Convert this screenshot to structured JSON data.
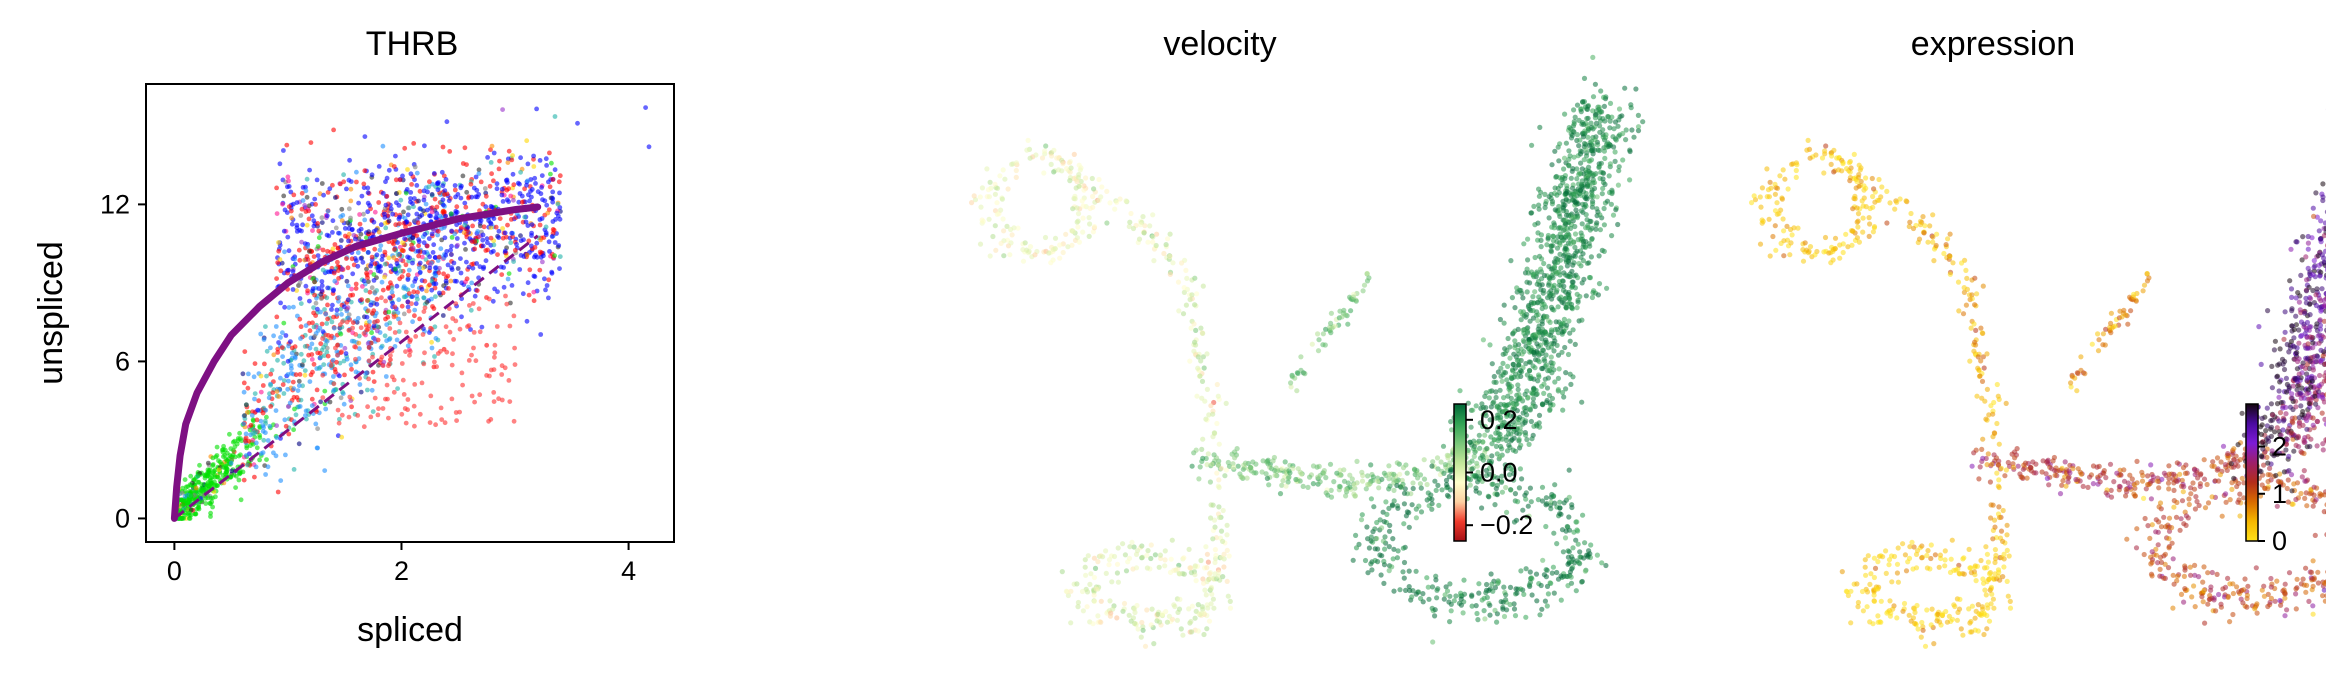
{
  "colors": {
    "fit_curve": "#7e1083",
    "steady_state": "#7e1083",
    "velocity_cmap": [
      "#a50f15",
      "#ef3b2c",
      "#fdd0a2",
      "#ffffcc",
      "#c2e699",
      "#78c679",
      "#31a354",
      "#006837"
    ],
    "expression_cmap": [
      "#ffe11a",
      "#f5b700",
      "#d86b00",
      "#b32d1a",
      "#9e1f6a",
      "#7d1bd6",
      "#4b0aa0",
      "#14060f"
    ],
    "cluster_palette": [
      "#ff0000",
      "#0000ff",
      "#00e000",
      "#ff8c00",
      "#1e90ff",
      "#ff1493",
      "#20b2aa",
      "#9932cc",
      "#ffd700",
      "#808080",
      "#000080",
      "#2f2f2f"
    ]
  },
  "chart_data": [
    {
      "type": "scatter",
      "title": "THRB",
      "xlabel": "spliced",
      "ylabel": "unspliced",
      "xlim": [
        -0.25,
        4.4
      ],
      "ylim": [
        -0.9,
        16.6
      ],
      "xticks": [
        0,
        2,
        4
      ],
      "yticks": [
        0,
        6,
        12
      ],
      "point_groups": [
        {
          "region": "upper cloud",
          "x_range": [
            0.9,
            3.4
          ],
          "y_range": [
            7.5,
            14.5
          ]
        },
        {
          "region": "middle cloud",
          "x_range": [
            0.6,
            2.4
          ],
          "y_range": [
            3.5,
            11.0
          ]
        },
        {
          "region": "lower tail",
          "x_range": [
            0.0,
            1.0
          ],
          "y_range": [
            0.0,
            4.5
          ]
        }
      ],
      "outliers": [
        {
          "x": 4.15,
          "y": 15.7
        },
        {
          "x": 4.18,
          "y": 14.2
        },
        {
          "x": 3.55,
          "y": 15.1
        }
      ],
      "fit_curve": [
        {
          "x": 0.0,
          "y": 0.0
        },
        {
          "x": 0.02,
          "y": 1.2
        },
        {
          "x": 0.05,
          "y": 2.4
        },
        {
          "x": 0.1,
          "y": 3.6
        },
        {
          "x": 0.2,
          "y": 4.8
        },
        {
          "x": 0.35,
          "y": 6.0
        },
        {
          "x": 0.5,
          "y": 7.0
        },
        {
          "x": 0.75,
          "y": 8.1
        },
        {
          "x": 1.0,
          "y": 9.0
        },
        {
          "x": 1.3,
          "y": 9.8
        },
        {
          "x": 1.6,
          "y": 10.4
        },
        {
          "x": 2.0,
          "y": 10.9
        },
        {
          "x": 2.5,
          "y": 11.45
        },
        {
          "x": 3.0,
          "y": 11.8
        },
        {
          "x": 3.2,
          "y": 11.9
        }
      ],
      "steady_state_line": [
        {
          "x": 0.0,
          "y": 0.0
        },
        {
          "x": 3.2,
          "y": 10.8
        }
      ]
    },
    {
      "type": "scatter",
      "title": "velocity",
      "embedding": "umap",
      "colorbar": {
        "ticks": [
          0.2,
          0.0,
          -0.2
        ],
        "tick_labels": [
          "0.2",
          "0.0",
          "−0.2"
        ],
        "range": [
          -0.26,
          0.26
        ]
      }
    },
    {
      "type": "scatter",
      "title": "expression",
      "embedding": "umap",
      "colorbar": {
        "ticks": [
          2,
          1,
          0
        ],
        "tick_labels": [
          "2",
          "1",
          "0"
        ],
        "range": [
          0,
          2.9
        ]
      }
    }
  ]
}
